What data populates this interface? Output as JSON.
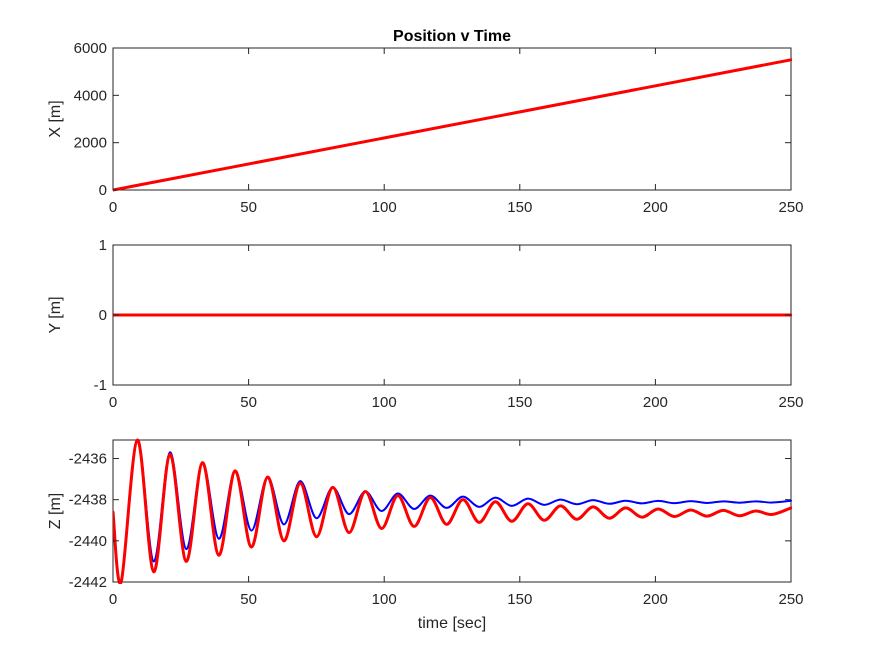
{
  "figure": {
    "title": "Position v Time"
  },
  "chart_data": [
    {
      "type": "line",
      "title": "Position v Time",
      "xlabel": "",
      "ylabel": "X [m]",
      "xlim": [
        0,
        250
      ],
      "ylim": [
        0,
        6000
      ],
      "xticks": [
        0,
        50,
        100,
        150,
        200,
        250
      ],
      "yticks": [
        0,
        2000,
        4000,
        6000
      ],
      "xtick_labels": [
        "0",
        "50",
        "100",
        "150",
        "200",
        "250"
      ],
      "ytick_labels": [
        "0",
        "2000",
        "4000",
        "6000"
      ],
      "grid": false,
      "series": [
        {
          "color": "#ff0000",
          "x": [
            0,
            250
          ],
          "y": [
            0,
            5500
          ]
        }
      ]
    },
    {
      "type": "line",
      "title": "",
      "xlabel": "",
      "ylabel": "Y [m]",
      "xlim": [
        0,
        250
      ],
      "ylim": [
        -1,
        1
      ],
      "xticks": [
        0,
        50,
        100,
        150,
        200,
        250
      ],
      "yticks": [
        -1,
        0,
        1
      ],
      "xtick_labels": [
        "0",
        "50",
        "100",
        "150",
        "200",
        "250"
      ],
      "ytick_labels": [
        "-1",
        "0",
        "1"
      ],
      "grid": false,
      "series": [
        {
          "color": "#ff0000",
          "x": [
            0,
            250
          ],
          "y": [
            0,
            0
          ]
        }
      ]
    },
    {
      "type": "line",
      "title": "",
      "xlabel": "time [sec]",
      "ylabel": "Z [m]",
      "xlim": [
        0,
        250
      ],
      "ylim": [
        -2442,
        -2435.1
      ],
      "xticks": [
        0,
        50,
        100,
        150,
        200,
        250
      ],
      "yticks": [
        -2442,
        -2440,
        -2438,
        -2436
      ],
      "xtick_labels": [
        "0",
        "50",
        "100",
        "150",
        "200",
        "250"
      ],
      "ytick_labels": [
        "-2442",
        "-2440",
        "-2438",
        "-2436"
      ],
      "grid": false,
      "series": [
        {
          "color": "#0000ff",
          "x": [
            0,
            3,
            9,
            15,
            21,
            27,
            33,
            39,
            45,
            51,
            57,
            63,
            69,
            75,
            81,
            87,
            93,
            99,
            105,
            111,
            117,
            123,
            129,
            135,
            141,
            147,
            153,
            159,
            165,
            171,
            177,
            183,
            189,
            195,
            201,
            207,
            213,
            219,
            225,
            231,
            237,
            243,
            250
          ],
          "y": [
            -2438.6,
            -2442.0,
            -2435.1,
            -2441.0,
            -2435.7,
            -2440.4,
            -2436.2,
            -2439.9,
            -2436.6,
            -2439.5,
            -2436.9,
            -2439.2,
            -2437.1,
            -2438.9,
            -2437.4,
            -2438.7,
            -2437.6,
            -2438.55,
            -2437.7,
            -2438.45,
            -2437.8,
            -2438.4,
            -2437.85,
            -2438.35,
            -2437.9,
            -2438.3,
            -2437.95,
            -2438.25,
            -2438.0,
            -2438.22,
            -2438.02,
            -2438.2,
            -2438.05,
            -2438.18,
            -2438.06,
            -2438.17,
            -2438.07,
            -2438.16,
            -2438.08,
            -2438.15,
            -2438.08,
            -2438.14,
            -2438.05
          ]
        },
        {
          "color": "#ff0000",
          "x": [
            0,
            3,
            9,
            15,
            21,
            27,
            33,
            39,
            45,
            51,
            57,
            63,
            69,
            75,
            81,
            87,
            93,
            99,
            105,
            111,
            117,
            123,
            129,
            135,
            141,
            147,
            153,
            159,
            165,
            171,
            177,
            183,
            189,
            195,
            201,
            207,
            213,
            219,
            225,
            231,
            237,
            243,
            250
          ],
          "y": [
            -2438.6,
            -2442.0,
            -2435.1,
            -2441.5,
            -2435.8,
            -2441.0,
            -2436.2,
            -2440.7,
            -2436.6,
            -2440.3,
            -2436.9,
            -2440.0,
            -2437.2,
            -2439.8,
            -2437.4,
            -2439.6,
            -2437.6,
            -2439.4,
            -2437.8,
            -2439.3,
            -2437.9,
            -2439.2,
            -2438.0,
            -2439.1,
            -2438.1,
            -2439.05,
            -2438.2,
            -2439.0,
            -2438.3,
            -2438.95,
            -2438.35,
            -2438.9,
            -2438.4,
            -2438.85,
            -2438.45,
            -2438.82,
            -2438.5,
            -2438.8,
            -2438.52,
            -2438.78,
            -2438.55,
            -2438.72,
            -2438.4
          ]
        }
      ]
    }
  ]
}
